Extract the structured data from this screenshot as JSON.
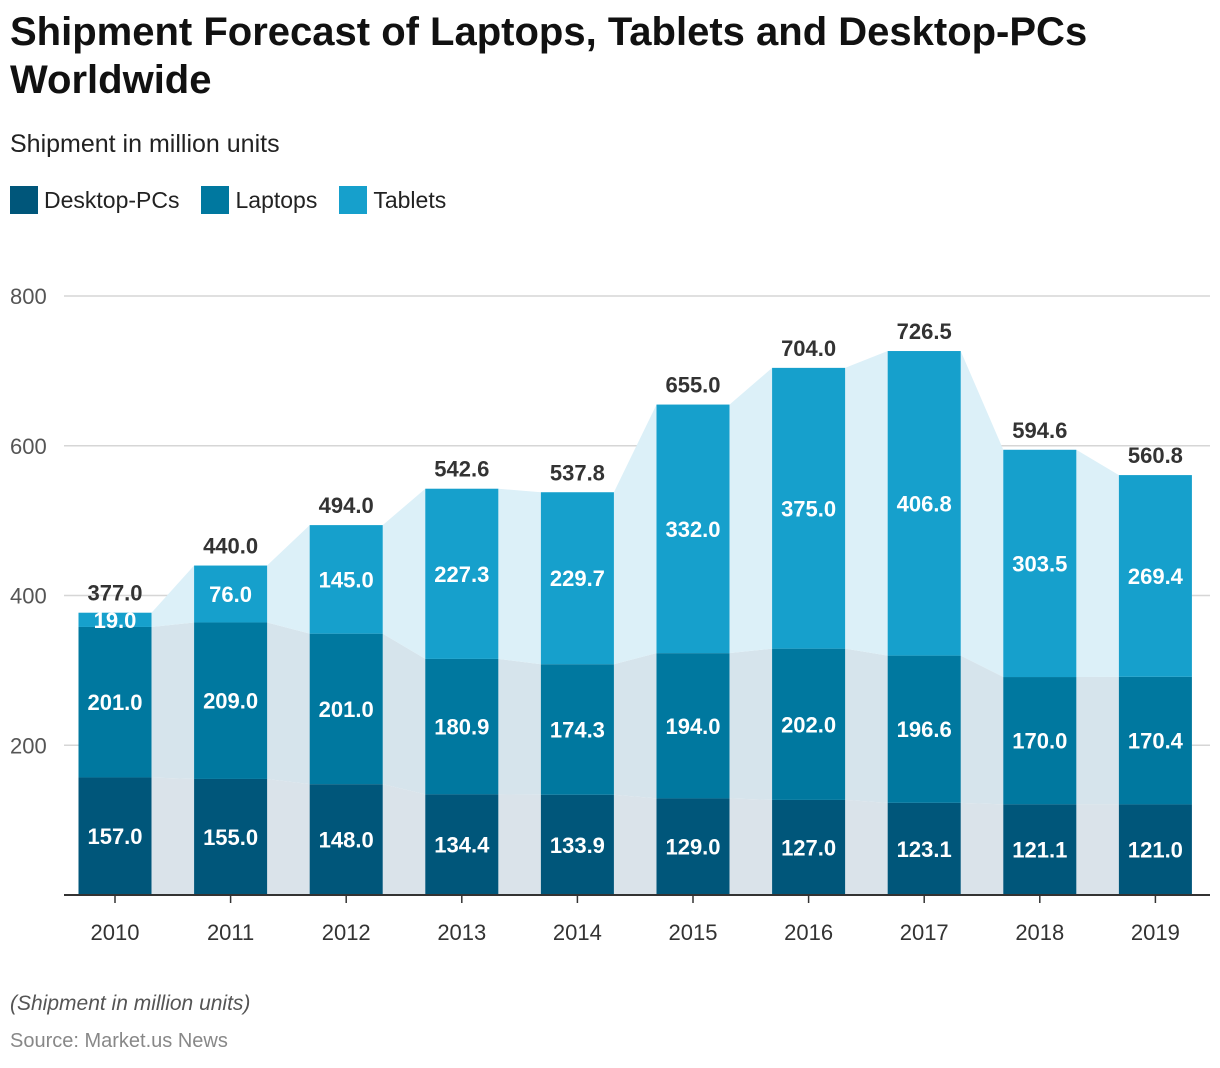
{
  "chart_data": {
    "type": "bar",
    "stacked": true,
    "title": "Shipment Forecast of Laptops, Tablets and Desktop-PCs Worldwide",
    "subtitle": "Shipment in million units",
    "categories": [
      "2010",
      "2011",
      "2012",
      "2013",
      "2014",
      "2015",
      "2016",
      "2017",
      "2018",
      "2019"
    ],
    "series": [
      {
        "name": "Desktop-PCs",
        "color": "#00567a",
        "values": [
          157.0,
          155.0,
          148.0,
          134.4,
          133.9,
          129.0,
          127.0,
          123.1,
          121.1,
          121.0
        ]
      },
      {
        "name": "Laptops",
        "color": "#00789f",
        "values": [
          201.0,
          209.0,
          201.0,
          180.9,
          174.3,
          194.0,
          202.0,
          196.6,
          170.0,
          170.4
        ]
      },
      {
        "name": "Tablets",
        "color": "#16a0cc",
        "values": [
          19.0,
          76.0,
          145.0,
          227.3,
          229.7,
          332.0,
          375.0,
          406.8,
          303.5,
          269.4
        ]
      }
    ],
    "totals": [
      377.0,
      440.0,
      494.0,
      542.6,
      537.8,
      655.0,
      704.0,
      726.5,
      594.6,
      560.8
    ],
    "yticks": [
      200,
      400,
      600,
      800
    ],
    "ylim": [
      0,
      800
    ],
    "grid": true,
    "legend_position": "top-left",
    "footnote": "(Shipment in million units)",
    "source": "Source: Market.us News"
  }
}
